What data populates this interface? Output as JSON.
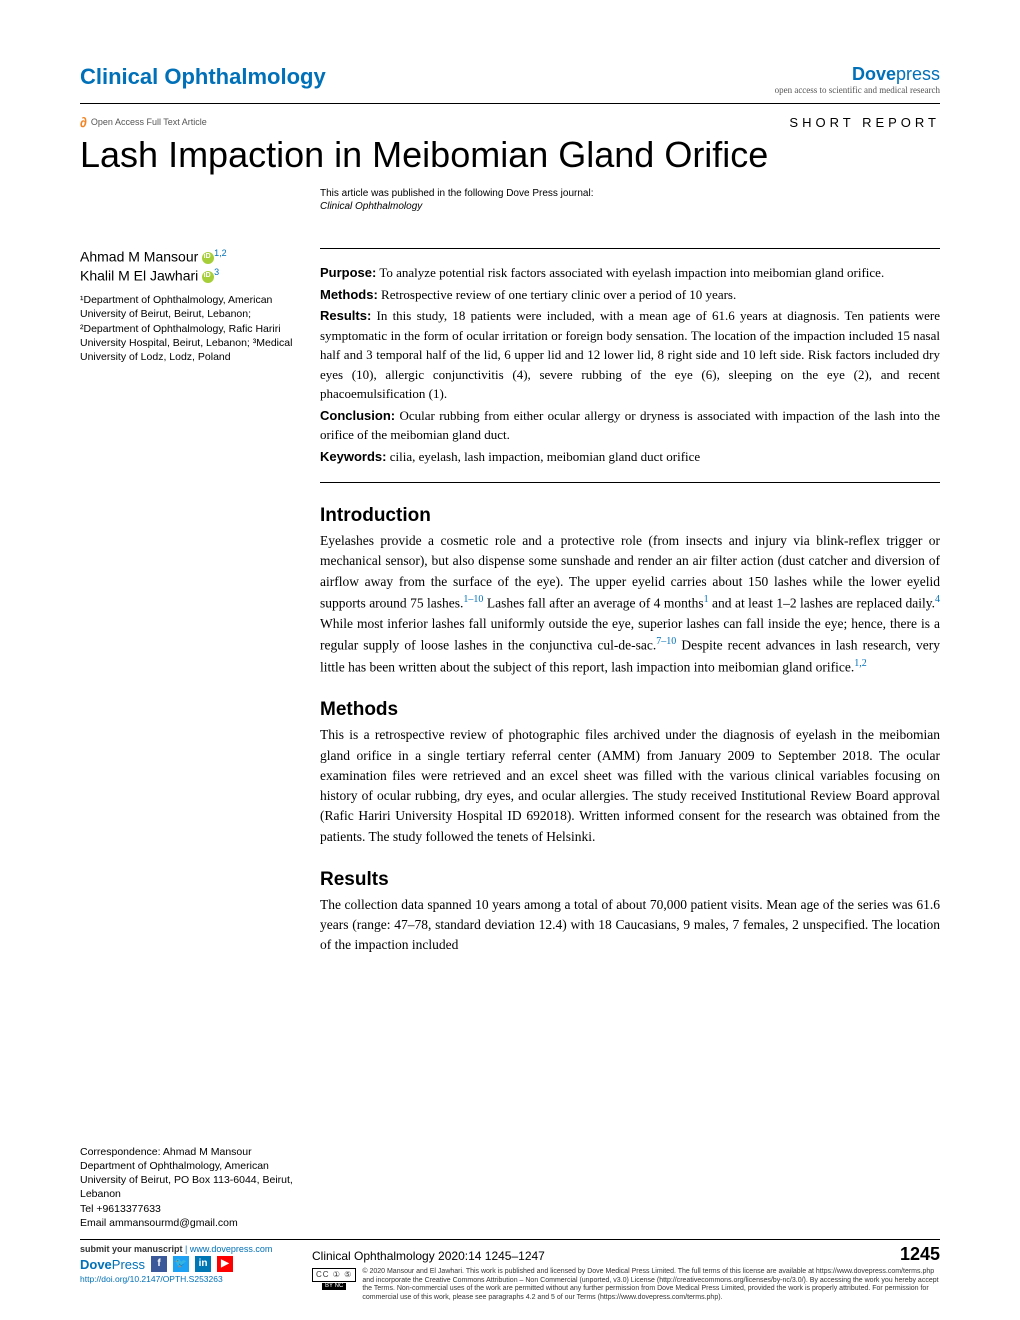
{
  "header": {
    "journal": "Clinical Ophthalmology",
    "publisher_prefix": "Dove",
    "publisher_suffix": "press",
    "publisher_tag": "open access to scientific and medical research",
    "open_access_label": "Open Access Full Text Article",
    "article_type": "SHORT REPORT"
  },
  "title": "Lash Impaction in Meibomian Gland Orifice",
  "pub_note": "This article was published in the following Dove Press journal:",
  "pub_note_journal": "Clinical Ophthalmology",
  "authors": {
    "a1_name": "Ahmad M Mansour",
    "a1_sup": "1,2",
    "a2_name": "Khalil M El Jawhari",
    "a2_sup": "3"
  },
  "affiliations": "¹Department of Ophthalmology, American University of Beirut, Beirut, Lebanon; ²Department of Ophthalmology, Rafic Hariri University Hospital, Beirut, Lebanon; ³Medical University of Lodz, Lodz, Poland",
  "abstract": {
    "purpose_label": "Purpose:",
    "purpose": " To analyze potential risk factors associated with eyelash impaction into meibomian gland orifice.",
    "methods_label": "Methods:",
    "methods": " Retrospective review of one tertiary clinic over a period of 10 years.",
    "results_label": "Results:",
    "results": " In this study, 18 patients were included, with a mean age of 61.6 years at diagnosis. Ten patients were symptomatic in the form of ocular irritation or foreign body sensation. The location of the impaction included 15 nasal half and 3 temporal half of the lid, 6 upper lid and 12 lower lid, 8 right side and 10 left side. Risk factors included dry eyes (10), allergic conjunctivitis (4), severe rubbing of the eye (6), sleeping on the eye (2), and recent phacoemulsification (1).",
    "conclusion_label": "Conclusion:",
    "conclusion": " Ocular rubbing from either ocular allergy or dryness is associated with impaction of the lash into the orifice of the meibomian gland duct.",
    "keywords_label": "Keywords:",
    "keywords": " cilia, eyelash, lash impaction, meibomian gland duct orifice"
  },
  "sections": {
    "intro_h": "Introduction",
    "intro_p1": "Eyelashes provide a cosmetic role and a protective role (from insects and injury via blink-reflex trigger or mechanical sensor), but also dispense some sunshade and render an air filter action (dust catcher and diversion of airflow away from the surface of the eye). The upper eyelid carries about 150 lashes while the lower eyelid supports around 75 lashes.",
    "intro_ref1": "1–10",
    "intro_p2": " Lashes fall after an average of 4 months",
    "intro_ref2": "1",
    "intro_p3": " and at least 1–2 lashes are replaced daily.",
    "intro_ref3": "4",
    "intro_p4": " While most inferior lashes fall uniformly outside the eye, superior lashes can fall inside the eye; hence, there is a regular supply of loose lashes in the conjunctiva cul-de-sac.",
    "intro_ref4": "7–10",
    "intro_p5": " Despite recent advances in lash research, very little has been written about the subject of this report, lash impaction into meibomian gland orifice.",
    "intro_ref5": "1,2",
    "methods_h": "Methods",
    "methods_p": "This is a retrospective review of photographic files archived under the diagnosis of eyelash in the meibomian gland orifice in a single tertiary referral center (AMM) from January 2009 to September 2018. The ocular examination files were retrieved and an excel sheet was filled with the various clinical variables focusing on history of ocular rubbing, dry eyes, and ocular allergies. The study received Institutional Review Board approval (Rafic Hariri University Hospital ID 692018). Written informed consent for the research was obtained from the patients. The study followed the tenets of Helsinki.",
    "results_h": "Results",
    "results_p": "The collection data spanned 10 years among a total of about 70,000 patient visits. Mean age of the series was 61.6 years (range: 47–78, standard deviation 12.4) with 18 Caucasians, 9 males, 7 females, 2 unspecified. The location of the impaction included"
  },
  "correspondence": {
    "label": "Correspondence: ",
    "name": "Ahmad M Mansour",
    "body": "Department of Ophthalmology, American University of Beirut, PO Box 113-6044, Beirut, Lebanon",
    "tel": "Tel +9613377633",
    "email": "Email ammansourmd@gmail.com"
  },
  "footer": {
    "submit_prefix": "submit your manuscript ",
    "submit_link": "| www.dovepress.com",
    "brand_prefix": "Dove",
    "brand_suffix": "Press",
    "doi": "http://doi.org/10.2147/OPTH.S253263",
    "citation": "Clinical Ophthalmology 2020:14 1245–1247",
    "page": "1245",
    "license": "© 2020 Mansour and El Jawhari. This work is published and licensed by Dove Medical Press Limited. The full terms of this license are available at https://www.dovepress.com/terms.php and incorporate the Creative Commons Attribution – Non Commercial (unported, v3.0) License (http://creativecommons.org/licenses/by-nc/3.0/). By accessing the work you hereby accept the Terms. Non-commercial uses of the work are permitted without any further permission from Dove Medical Press Limited, provided the work is properly attributed. For permission for commercial use of this work, please see paragraphs 4.2 and 5 of our Terms (https://www.dovepress.com/terms.php).",
    "cc_label": "CC ① ⑤",
    "nc_label": "BY    NC"
  }
}
